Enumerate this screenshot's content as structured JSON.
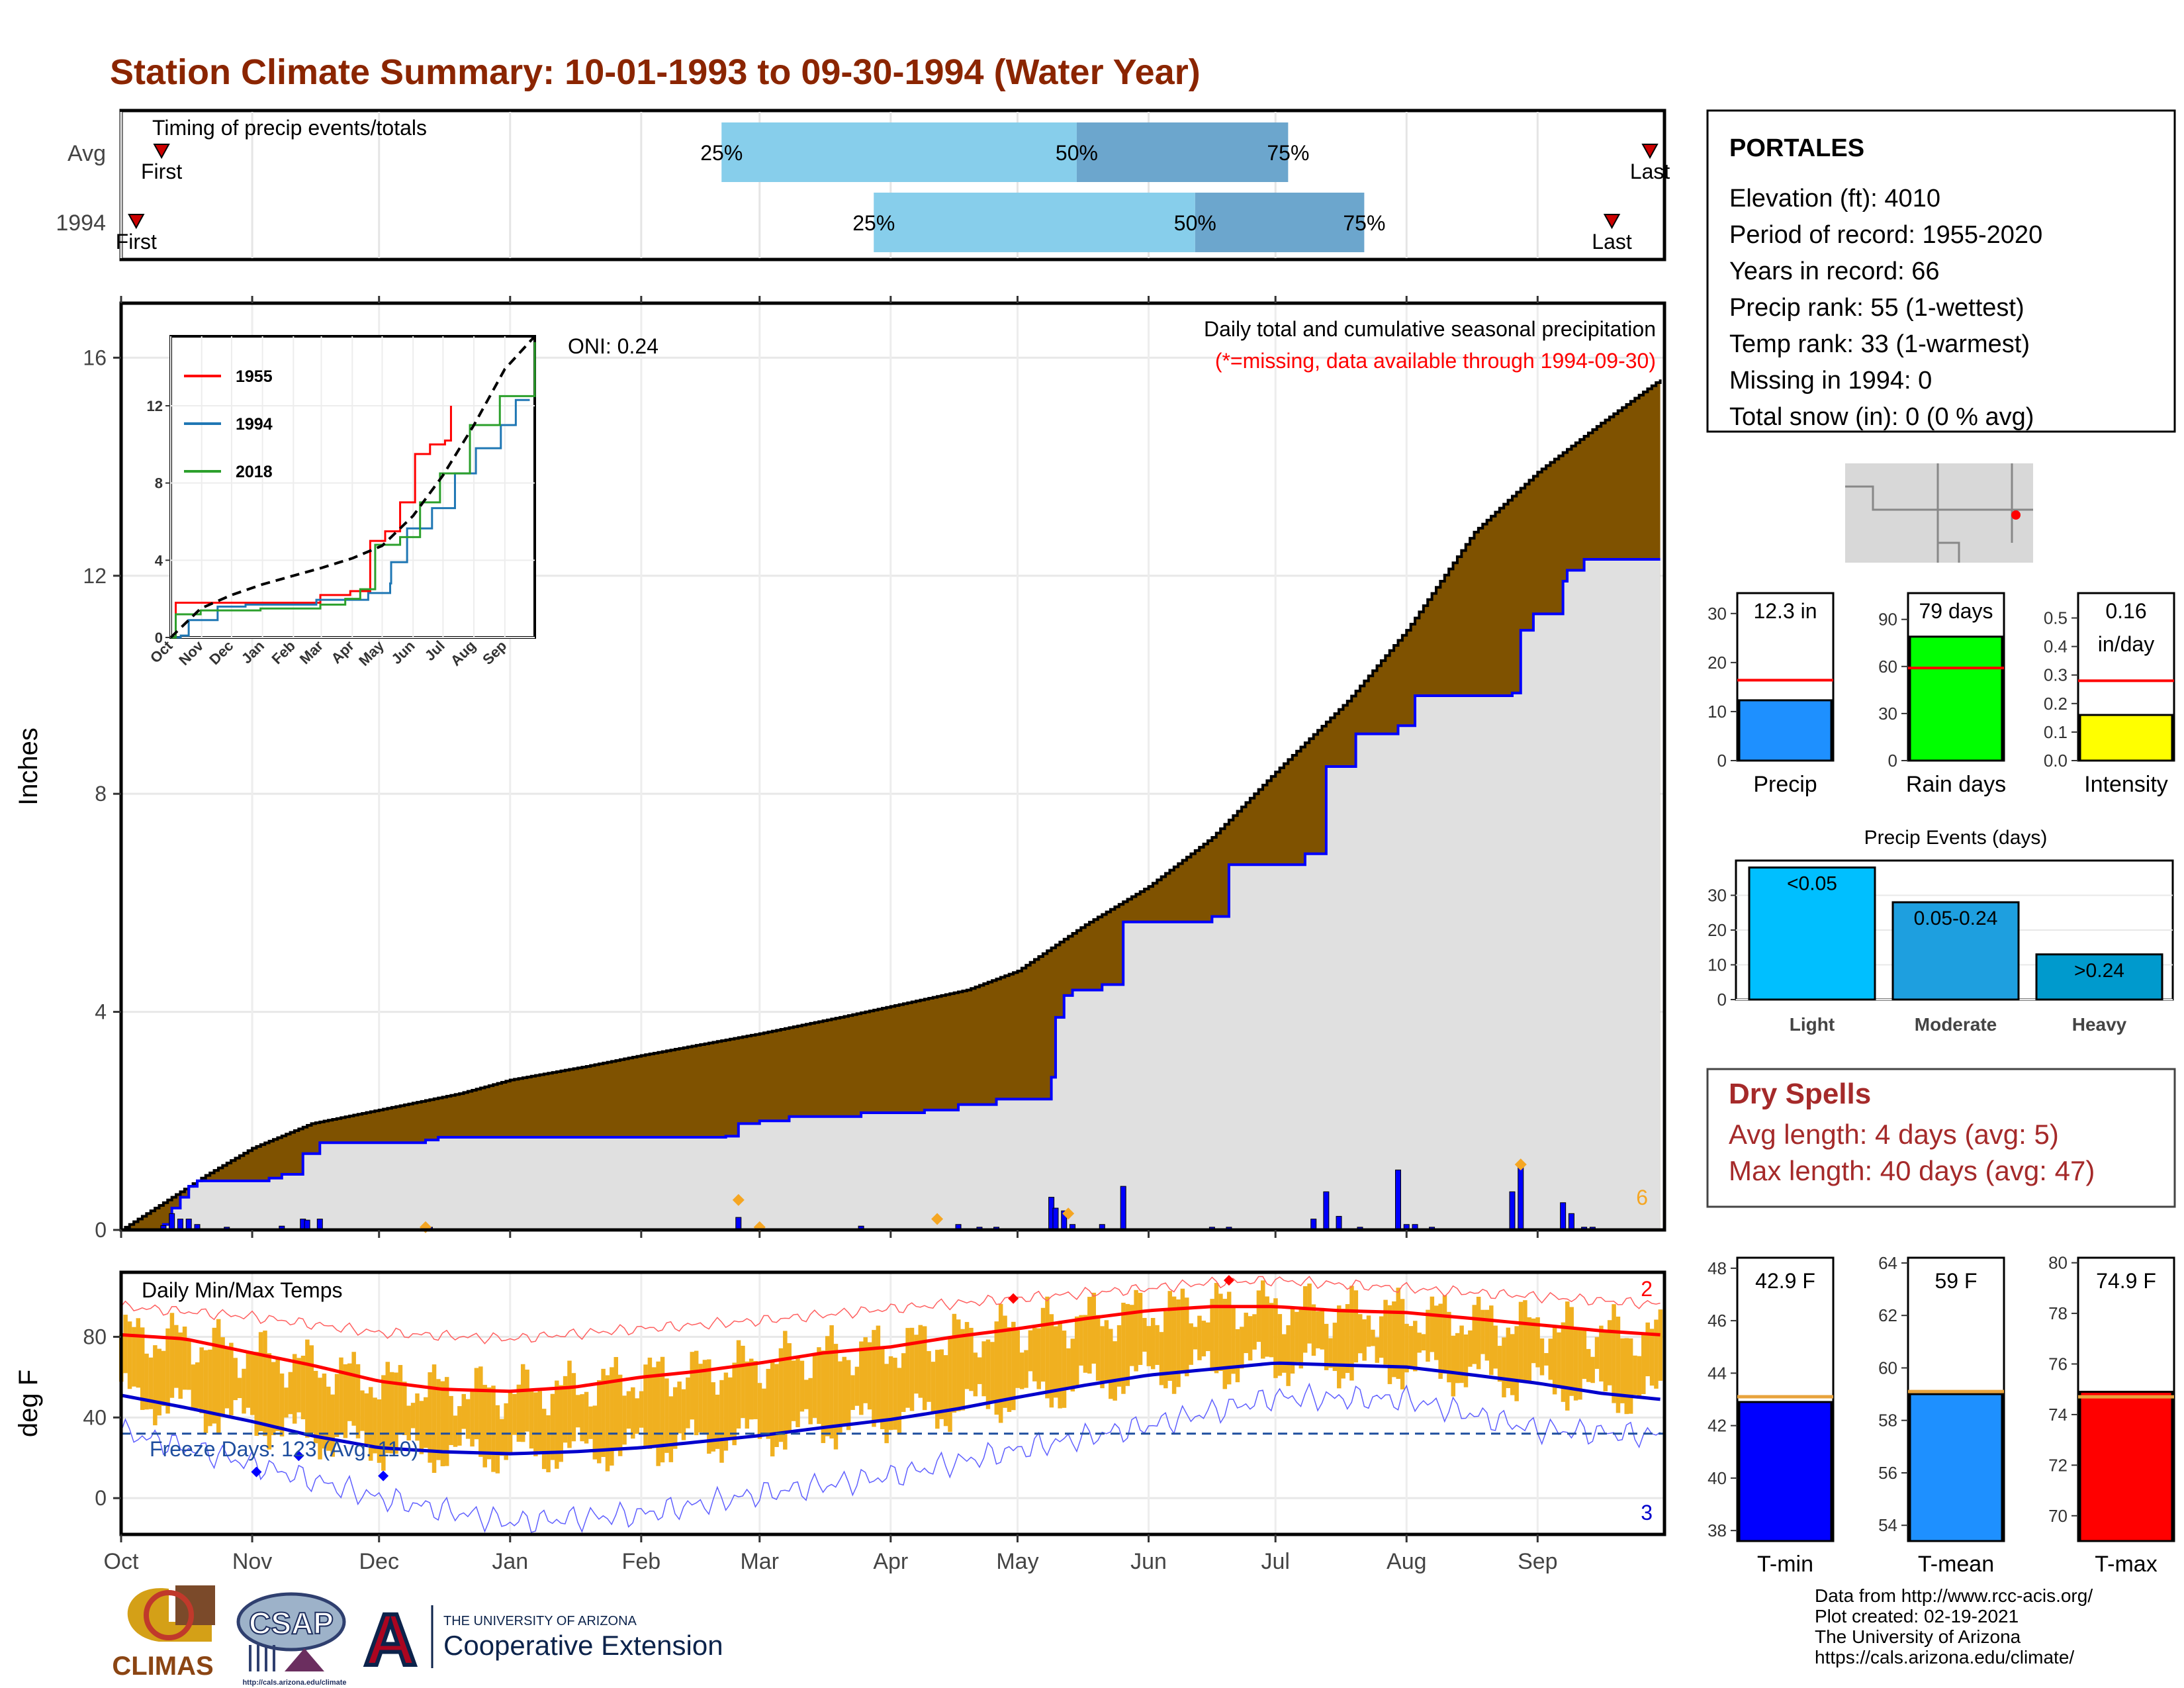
{
  "title": "Station Climate Summary: 10-01-1993 to 09-30-1994 (Water Year)",
  "colors": {
    "title": "#8B2500",
    "brown": "#7F5200",
    "gray_fill": "#E0E0E0",
    "blue": "#0000FF",
    "orange": "#F5A623",
    "red": "#FF0000",
    "light_blue": "#87CEEB",
    "mid_blue": "#6CA6CD",
    "dry_red": "#A52A2A",
    "tmean_blue": "#1E90FF",
    "precip_blue": "#1E90FF",
    "rain_green": "#00FF00",
    "intensity_yellow": "#FFFF00",
    "event_light": "#00BFFF",
    "event_moderate": "#1E9FDF",
    "event_heavy": "#009ACD"
  },
  "timing": {
    "label": "Timing of precip events/totals",
    "rows": [
      "Avg",
      "1994"
    ],
    "first_label": "First",
    "last_label": "Last",
    "avg": {
      "first": 8,
      "p25": 142,
      "p50": 226,
      "p75": 276,
      "last": 360
    },
    "y1994": {
      "first": 2,
      "p25": 178,
      "p50": 254,
      "p75": 294,
      "last": 351
    },
    "pct_labels": [
      "25%",
      "50%",
      "75%"
    ]
  },
  "month_labels": [
    "Oct",
    "Nov",
    "Dec",
    "Jan",
    "Feb",
    "Mar",
    "Apr",
    "May",
    "Jun",
    "Jul",
    "Aug",
    "Sep"
  ],
  "month_offsets": [
    0,
    31,
    61,
    92,
    123,
    151,
    182,
    212,
    243,
    273,
    304,
    335
  ],
  "precip": {
    "ylabel": "Inches",
    "yticks": [
      0,
      4,
      8,
      12,
      16
    ],
    "ylim": [
      0,
      17
    ],
    "legend_title": "Daily total and cumulative seasonal precipitation",
    "missing_note": "(*=missing, data available through 1994-09-30)",
    "oni": "ONI: 0.24",
    "orange_count": "6",
    "avg_curve": [
      [
        0,
        0
      ],
      [
        10,
        0.5
      ],
      [
        20,
        1.0
      ],
      [
        31,
        1.5
      ],
      [
        45,
        1.95
      ],
      [
        61,
        2.2
      ],
      [
        80,
        2.5
      ],
      [
        92,
        2.75
      ],
      [
        110,
        3.0
      ],
      [
        123,
        3.2
      ],
      [
        137,
        3.4
      ],
      [
        151,
        3.6
      ],
      [
        170,
        3.9
      ],
      [
        182,
        4.1
      ],
      [
        200,
        4.4
      ],
      [
        212,
        4.75
      ],
      [
        228,
        5.6
      ],
      [
        243,
        6.3
      ],
      [
        258,
        7.2
      ],
      [
        273,
        8.4
      ],
      [
        290,
        9.7
      ],
      [
        304,
        11.0
      ],
      [
        320,
        12.8
      ],
      [
        335,
        13.9
      ],
      [
        350,
        14.8
      ],
      [
        364,
        15.6
      ]
    ],
    "cum_1994": [
      [
        0,
        0
      ],
      [
        10,
        0.1
      ],
      [
        12,
        0.4
      ],
      [
        14,
        0.6
      ],
      [
        16,
        0.8
      ],
      [
        18,
        0.9
      ],
      [
        35,
        0.95
      ],
      [
        38,
        1.02
      ],
      [
        43,
        1.4
      ],
      [
        47,
        1.6
      ],
      [
        72,
        1.65
      ],
      [
        75,
        1.7
      ],
      [
        143,
        1.72
      ],
      [
        146,
        1.95
      ],
      [
        151,
        2.0
      ],
      [
        158,
        2.08
      ],
      [
        175,
        2.15
      ],
      [
        190,
        2.2
      ],
      [
        198,
        2.3
      ],
      [
        207,
        2.4
      ],
      [
        220,
        2.8
      ],
      [
        221,
        3.9
      ],
      [
        223,
        4.3
      ],
      [
        225,
        4.4
      ],
      [
        232,
        4.5
      ],
      [
        237,
        5.65
      ],
      [
        258,
        5.75
      ],
      [
        262,
        6.7
      ],
      [
        280,
        6.9
      ],
      [
        285,
        8.5
      ],
      [
        292,
        9.1
      ],
      [
        302,
        9.25
      ],
      [
        306,
        9.8
      ],
      [
        329,
        9.85
      ],
      [
        331,
        11.0
      ],
      [
        334,
        11.3
      ],
      [
        341,
        11.9
      ],
      [
        342,
        12.1
      ],
      [
        346,
        12.3
      ],
      [
        364,
        12.3
      ]
    ],
    "bars_1994": [
      [
        10,
        0.08
      ],
      [
        12,
        0.3
      ],
      [
        14,
        0.2
      ],
      [
        16,
        0.2
      ],
      [
        18,
        0.1
      ],
      [
        25,
        0.05
      ],
      [
        38,
        0.07
      ],
      [
        43,
        0.2
      ],
      [
        44,
        0.18
      ],
      [
        47,
        0.2
      ],
      [
        72,
        0.05
      ],
      [
        73,
        0.05
      ],
      [
        146,
        0.23
      ],
      [
        175,
        0.07
      ],
      [
        198,
        0.1
      ],
      [
        203,
        0.05
      ],
      [
        207,
        0.05
      ],
      [
        220,
        0.6
      ],
      [
        221,
        0.4
      ],
      [
        223,
        0.35
      ],
      [
        225,
        0.1
      ],
      [
        232,
        0.1
      ],
      [
        237,
        0.8
      ],
      [
        258,
        0.05
      ],
      [
        262,
        0.05
      ],
      [
        282,
        0.2
      ],
      [
        285,
        0.7
      ],
      [
        288,
        0.25
      ],
      [
        293,
        0.05
      ],
      [
        302,
        1.1
      ],
      [
        304,
        0.1
      ],
      [
        306,
        0.1
      ],
      [
        310,
        0.05
      ],
      [
        329,
        0.7
      ],
      [
        331,
        1.2
      ],
      [
        341,
        0.5
      ],
      [
        343,
        0.3
      ],
      [
        346,
        0.05
      ],
      [
        348,
        0.05
      ]
    ],
    "orange_marks": [
      [
        72,
        0.05
      ],
      [
        146,
        0.55
      ],
      [
        151,
        0.05
      ],
      [
        193,
        0.2
      ],
      [
        224,
        0.3
      ],
      [
        331,
        1.2
      ]
    ]
  },
  "inset": {
    "series": [
      {
        "name": "1955",
        "color": "#FF0000",
        "points": [
          [
            0,
            0
          ],
          [
            5,
            1.8
          ],
          [
            120,
            1.8
          ],
          [
            150,
            2.2
          ],
          [
            180,
            2.4
          ],
          [
            200,
            5.0
          ],
          [
            215,
            5.5
          ],
          [
            230,
            7.0
          ],
          [
            245,
            9.5
          ],
          [
            260,
            10.0
          ],
          [
            275,
            10.2
          ],
          [
            281,
            12.0
          ]
        ]
      },
      {
        "name": "1994",
        "color": "#1F77B4",
        "points": [
          [
            0,
            0
          ],
          [
            10,
            0.1
          ],
          [
            18,
            0.9
          ],
          [
            47,
            1.6
          ],
          [
            75,
            1.7
          ],
          [
            146,
            1.95
          ],
          [
            198,
            2.3
          ],
          [
            220,
            2.8
          ],
          [
            221,
            3.9
          ],
          [
            237,
            5.65
          ],
          [
            262,
            6.7
          ],
          [
            285,
            8.5
          ],
          [
            306,
            9.8
          ],
          [
            331,
            11.0
          ],
          [
            346,
            12.3
          ],
          [
            360,
            12.3
          ]
        ]
      },
      {
        "name": "2018",
        "color": "#2CA02C",
        "points": [
          [
            0,
            0
          ],
          [
            5,
            1.2
          ],
          [
            30,
            1.4
          ],
          [
            90,
            1.5
          ],
          [
            150,
            1.7
          ],
          [
            175,
            2.0
          ],
          [
            190,
            2.5
          ],
          [
            205,
            4.8
          ],
          [
            230,
            5.2
          ],
          [
            250,
            7.0
          ],
          [
            270,
            8.5
          ],
          [
            300,
            11.0
          ],
          [
            330,
            12.5
          ],
          [
            365,
            15.3
          ]
        ]
      }
    ],
    "avg_curve": [
      [
        0,
        0
      ],
      [
        30,
        1.5
      ],
      [
        61,
        2.2
      ],
      [
        92,
        2.75
      ],
      [
        123,
        3.2
      ],
      [
        151,
        3.6
      ],
      [
        182,
        4.1
      ],
      [
        212,
        4.75
      ],
      [
        243,
        6.3
      ],
      [
        273,
        8.4
      ],
      [
        304,
        11.0
      ],
      [
        335,
        13.9
      ],
      [
        365,
        15.6
      ]
    ],
    "yticks": [
      0,
      4,
      8,
      12
    ],
    "ylim": [
      0,
      15.6
    ],
    "xlabels": [
      "Oct",
      "Nov",
      "Dec",
      "Jan",
      "Feb",
      "Mar",
      "Apr",
      "May",
      "Jun",
      "Jul",
      "Aug",
      "Sep"
    ]
  },
  "temps": {
    "label": "Daily Min/Max Temps",
    "ylabel": "deg F",
    "yticks": [
      0,
      40,
      80
    ],
    "ylim": [
      -18,
      112
    ],
    "freeze_label": "Freeze Days: 123 (Avg: 110)",
    "freeze_line": 32,
    "record_high_count": "2",
    "record_low_count": "3",
    "avg_max_pts": [
      [
        0,
        81
      ],
      [
        15,
        79
      ],
      [
        31,
        72
      ],
      [
        45,
        66
      ],
      [
        61,
        58
      ],
      [
        76,
        54
      ],
      [
        92,
        53
      ],
      [
        107,
        55
      ],
      [
        123,
        60
      ],
      [
        137,
        63
      ],
      [
        151,
        67
      ],
      [
        166,
        72
      ],
      [
        182,
        75
      ],
      [
        197,
        80
      ],
      [
        212,
        84
      ],
      [
        228,
        89
      ],
      [
        243,
        93
      ],
      [
        258,
        95
      ],
      [
        273,
        95
      ],
      [
        288,
        93
      ],
      [
        304,
        92
      ],
      [
        320,
        89
      ],
      [
        335,
        86
      ],
      [
        350,
        83
      ],
      [
        364,
        81
      ]
    ],
    "avg_min_pts": [
      [
        0,
        51
      ],
      [
        15,
        45
      ],
      [
        31,
        38
      ],
      [
        45,
        31
      ],
      [
        61,
        25
      ],
      [
        76,
        23
      ],
      [
        92,
        22
      ],
      [
        107,
        23
      ],
      [
        123,
        25
      ],
      [
        137,
        28
      ],
      [
        151,
        31
      ],
      [
        166,
        35
      ],
      [
        182,
        39
      ],
      [
        197,
        44
      ],
      [
        212,
        50
      ],
      [
        228,
        56
      ],
      [
        243,
        61
      ],
      [
        258,
        64
      ],
      [
        273,
        67
      ],
      [
        288,
        66
      ],
      [
        304,
        65
      ],
      [
        320,
        61
      ],
      [
        335,
        57
      ],
      [
        350,
        52
      ],
      [
        364,
        49
      ]
    ],
    "rec_max_pts": [
      [
        0,
        95
      ],
      [
        31,
        90
      ],
      [
        61,
        82
      ],
      [
        92,
        79
      ],
      [
        123,
        84
      ],
      [
        151,
        88
      ],
      [
        182,
        94
      ],
      [
        212,
        99
      ],
      [
        243,
        104
      ],
      [
        258,
        107
      ],
      [
        273,
        108
      ],
      [
        304,
        104
      ],
      [
        335,
        100
      ],
      [
        364,
        96
      ]
    ],
    "rec_min_pts": [
      [
        0,
        33
      ],
      [
        31,
        17
      ],
      [
        61,
        0
      ],
      [
        92,
        -12
      ],
      [
        123,
        -8
      ],
      [
        151,
        2
      ],
      [
        182,
        11
      ],
      [
        212,
        24
      ],
      [
        243,
        36
      ],
      [
        273,
        50
      ],
      [
        304,
        49
      ],
      [
        335,
        34
      ],
      [
        364,
        31
      ]
    ],
    "record_high_marks": [
      [
        211,
        99
      ],
      [
        262,
        108
      ]
    ],
    "freeze_marks": [
      [
        32,
        13
      ],
      [
        42,
        21
      ],
      [
        62,
        11
      ]
    ]
  },
  "station": {
    "name": "PORTALES",
    "lines": [
      "Elevation (ft): 4010",
      "Period of record: 1955-2020",
      "Years in record: 66",
      "Precip rank: 55 (1-wettest)",
      "Temp rank: 33 (1-warmest)",
      "Missing in 1994: 0",
      "Total snow (in): 0 (0 % avg)"
    ]
  },
  "mini_bars": [
    {
      "value_label": "12.3 in",
      "value": 12.3,
      "avg": 16.4,
      "max": 32,
      "ticks": [
        0,
        10,
        20,
        30
      ],
      "label": "Precip",
      "color_key": "precip_blue"
    },
    {
      "value_label": "79 days",
      "value": 79,
      "avg": 59,
      "max": 100,
      "ticks": [
        0,
        30,
        60,
        90
      ],
      "label": "Rain days",
      "color_key": "rain_green"
    },
    {
      "value_label": "0.16\nin/day",
      "value": 0.16,
      "avg": 0.28,
      "max": 0.55,
      "ticks": [
        "0.0",
        "0.1",
        "0.2",
        "0.3",
        "0.4",
        "0.5"
      ],
      "label": "Intensity",
      "color_key": "intensity_yellow"
    }
  ],
  "precip_events": {
    "title": "Precip Events (days)",
    "yticks": [
      0,
      10,
      20,
      30
    ],
    "ymax": 40,
    "bars": [
      {
        "label": "Light",
        "range": "<0.05",
        "value": 38,
        "color_key": "event_light"
      },
      {
        "label": "Moderate",
        "range": "0.05-0.24",
        "value": 28,
        "color_key": "event_moderate"
      },
      {
        "label": "Heavy",
        "range": ">0.24",
        "value": 13,
        "color_key": "event_heavy"
      }
    ]
  },
  "dry_spells": {
    "title": "Dry Spells",
    "avg_length": "Avg length: 4 days (avg: 5)",
    "max_length": "Max length: 40 days (avg: 47)"
  },
  "temp_bars": [
    {
      "value_label": "42.9 F",
      "value": 42.9,
      "avg": 43.1,
      "ymin": 37.6,
      "ymax": 48.4,
      "ticks": [
        38,
        40,
        42,
        44,
        46,
        48
      ],
      "label": "T-min",
      "color_key": "blue"
    },
    {
      "value_label": "59 F",
      "value": 59.0,
      "avg": 59.1,
      "ymin": 53.4,
      "ymax": 64.2,
      "ticks": [
        54,
        56,
        58,
        60,
        62,
        64
      ],
      "label": "T-mean",
      "color_key": "tmean_blue"
    },
    {
      "value_label": "74.9 F",
      "value": 74.9,
      "avg": 74.7,
      "ymin": 69.0,
      "ymax": 80.2,
      "ticks": [
        70,
        72,
        74,
        76,
        78,
        80
      ],
      "label": "T-max",
      "color_key": "red"
    }
  ],
  "footer": {
    "lines": [
      "Data from http://www.rcc-acis.org/",
      "Plot created: 02-19-2021",
      "The University of Arizona",
      "https://cals.arizona.edu/climate/"
    ],
    "climas": "CLIMAS",
    "csap": "CSAP",
    "csap_url": "http://cals.arizona.edu/climate",
    "ua_line1": "THE UNIVERSITY OF ARIZONA",
    "ua_line2": "Cooperative Extension",
    "ua_letter": "A"
  }
}
